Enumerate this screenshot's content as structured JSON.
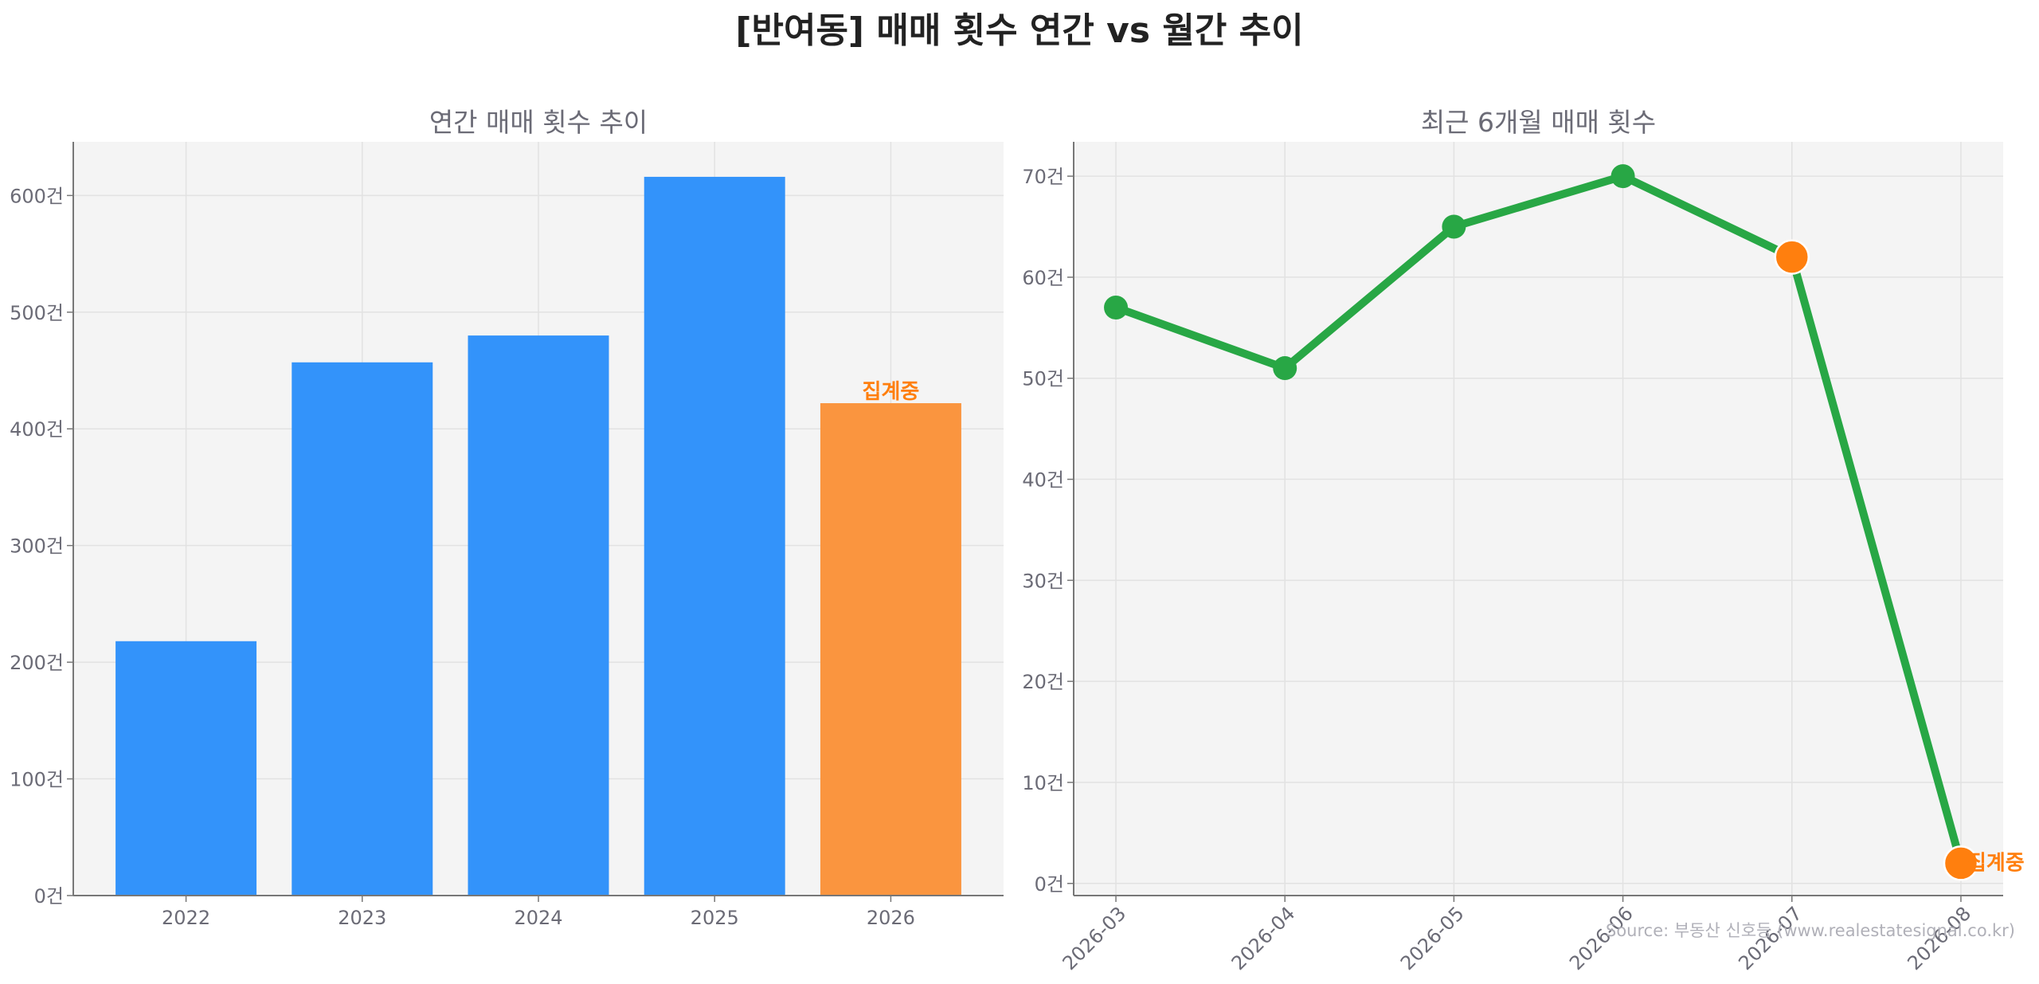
{
  "title": "[반여동] 매매 횟수 연간 vs 월간 추이",
  "source": "Source: 부동산 신호등 (www.realestatesignal.co.kr)",
  "colors": {
    "bar": "#3393fa",
    "bar_highlight": "#fa953f",
    "line": "#28a745",
    "marker_highlight": "#ff7f0e",
    "plot_bg": "#f4f4f4",
    "annotation": "#ff7f0e"
  },
  "chart_data": [
    {
      "type": "bar",
      "title": "연간 매매 횟수 추이",
      "categories": [
        "2022",
        "2023",
        "2024",
        "2025",
        "2026"
      ],
      "values": [
        218,
        457,
        480,
        616,
        422
      ],
      "highlight_index": 4,
      "annotation": "집계중",
      "ylim": [
        0,
        646
      ],
      "yticks": [
        0,
        100,
        200,
        300,
        400,
        500,
        600
      ],
      "ytick_labels": [
        "0건",
        "100건",
        "200건",
        "300건",
        "400건",
        "500건",
        "600건"
      ],
      "grid": true
    },
    {
      "type": "line",
      "title": "최근 6개월 매매 횟수",
      "categories": [
        "2026-03",
        "2026-04",
        "2026-05",
        "2026-06",
        "2026-07",
        "2026-08"
      ],
      "values": [
        57,
        51,
        65,
        70,
        62,
        2
      ],
      "highlight_indices": [
        4,
        5
      ],
      "annotation": "집계중",
      "ylim": [
        -1.2,
        73.4
      ],
      "yticks": [
        0,
        10,
        20,
        30,
        40,
        50,
        60,
        70
      ],
      "ytick_labels": [
        "0건",
        "10건",
        "20건",
        "30건",
        "40건",
        "50건",
        "60건",
        "70건"
      ],
      "grid": true
    }
  ]
}
